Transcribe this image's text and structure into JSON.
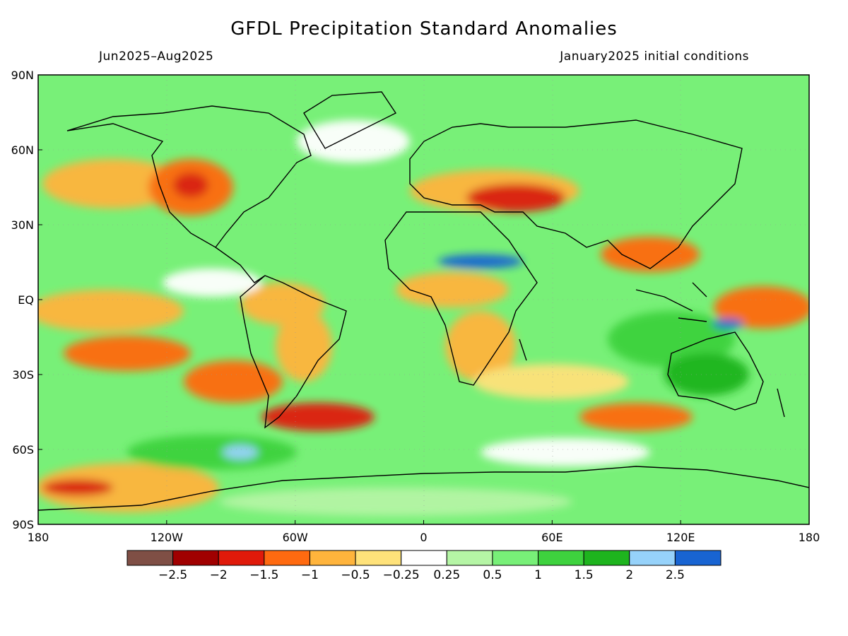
{
  "title": "GFDL Precipitation Standard Anomalies",
  "period": "Jun2025–Aug2025",
  "init": "January2025 initial conditions",
  "map": {
    "lon_range": [
      -180,
      180
    ],
    "lat_range": [
      -90,
      90
    ],
    "lat_labels": [
      "90N",
      "60N",
      "30N",
      "EQ",
      "30S",
      "60S",
      "90S"
    ],
    "lat_values": [
      90,
      60,
      30,
      0,
      -30,
      -60,
      -90
    ],
    "lon_labels": [
      "180",
      "120W",
      "60W",
      "0",
      "60E",
      "120E",
      "180"
    ],
    "lon_values": [
      -180,
      -120,
      -60,
      0,
      60,
      120,
      180
    ]
  },
  "colorbar": {
    "colors": [
      "#7f4f45",
      "#a00000",
      "#e01a0a",
      "#ff6a10",
      "#ffb43c",
      "#ffe27a",
      "#ffffff",
      "#b5f5a5",
      "#78f078",
      "#3ed23e",
      "#1eb41e",
      "#96d2fa",
      "#1864d2"
    ],
    "labels": [
      "−2.5",
      "−2",
      "−1.5",
      "−1",
      "−0.5",
      "−0.25",
      "0.25",
      "0.5",
      "1",
      "1.5",
      "2",
      "2.5"
    ]
  }
}
